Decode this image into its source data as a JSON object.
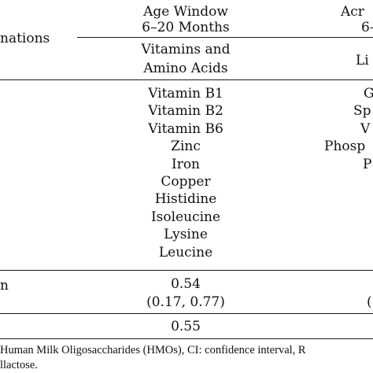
{
  "header": {
    "left_label": "nations",
    "col1_title_line1": "Age Window",
    "col1_title_line2": "6–20 Months",
    "col2_title_line1": "Acr",
    "col2_title_line2": "6–"
  },
  "subheader": {
    "col1_line1": "Vitamins and",
    "col1_line2": "Amino Acids",
    "col2_line1": "Li"
  },
  "rows": {
    "col1_items": [
      "Vitamin B1",
      "Vitamin B2",
      "Vitamin B6",
      "Zinc",
      "Iron",
      "Copper",
      "Histidine",
      "Isoleucine",
      "Lysine",
      "Leucine"
    ],
    "col2_items": [
      "G",
      "Sp",
      "V",
      "Phosp",
      "P"
    ]
  },
  "stats": {
    "row_label": "n",
    "col1_value": "0.54",
    "col1_ci": "(0.17, 0.77)",
    "col2_ci_fragment": "(",
    "col1_value2": "0.55"
  },
  "footnote": {
    "line1": "Human Milk Oligosaccharides (HMOs), CI: confidence interval, R",
    "line2": "llactose."
  }
}
